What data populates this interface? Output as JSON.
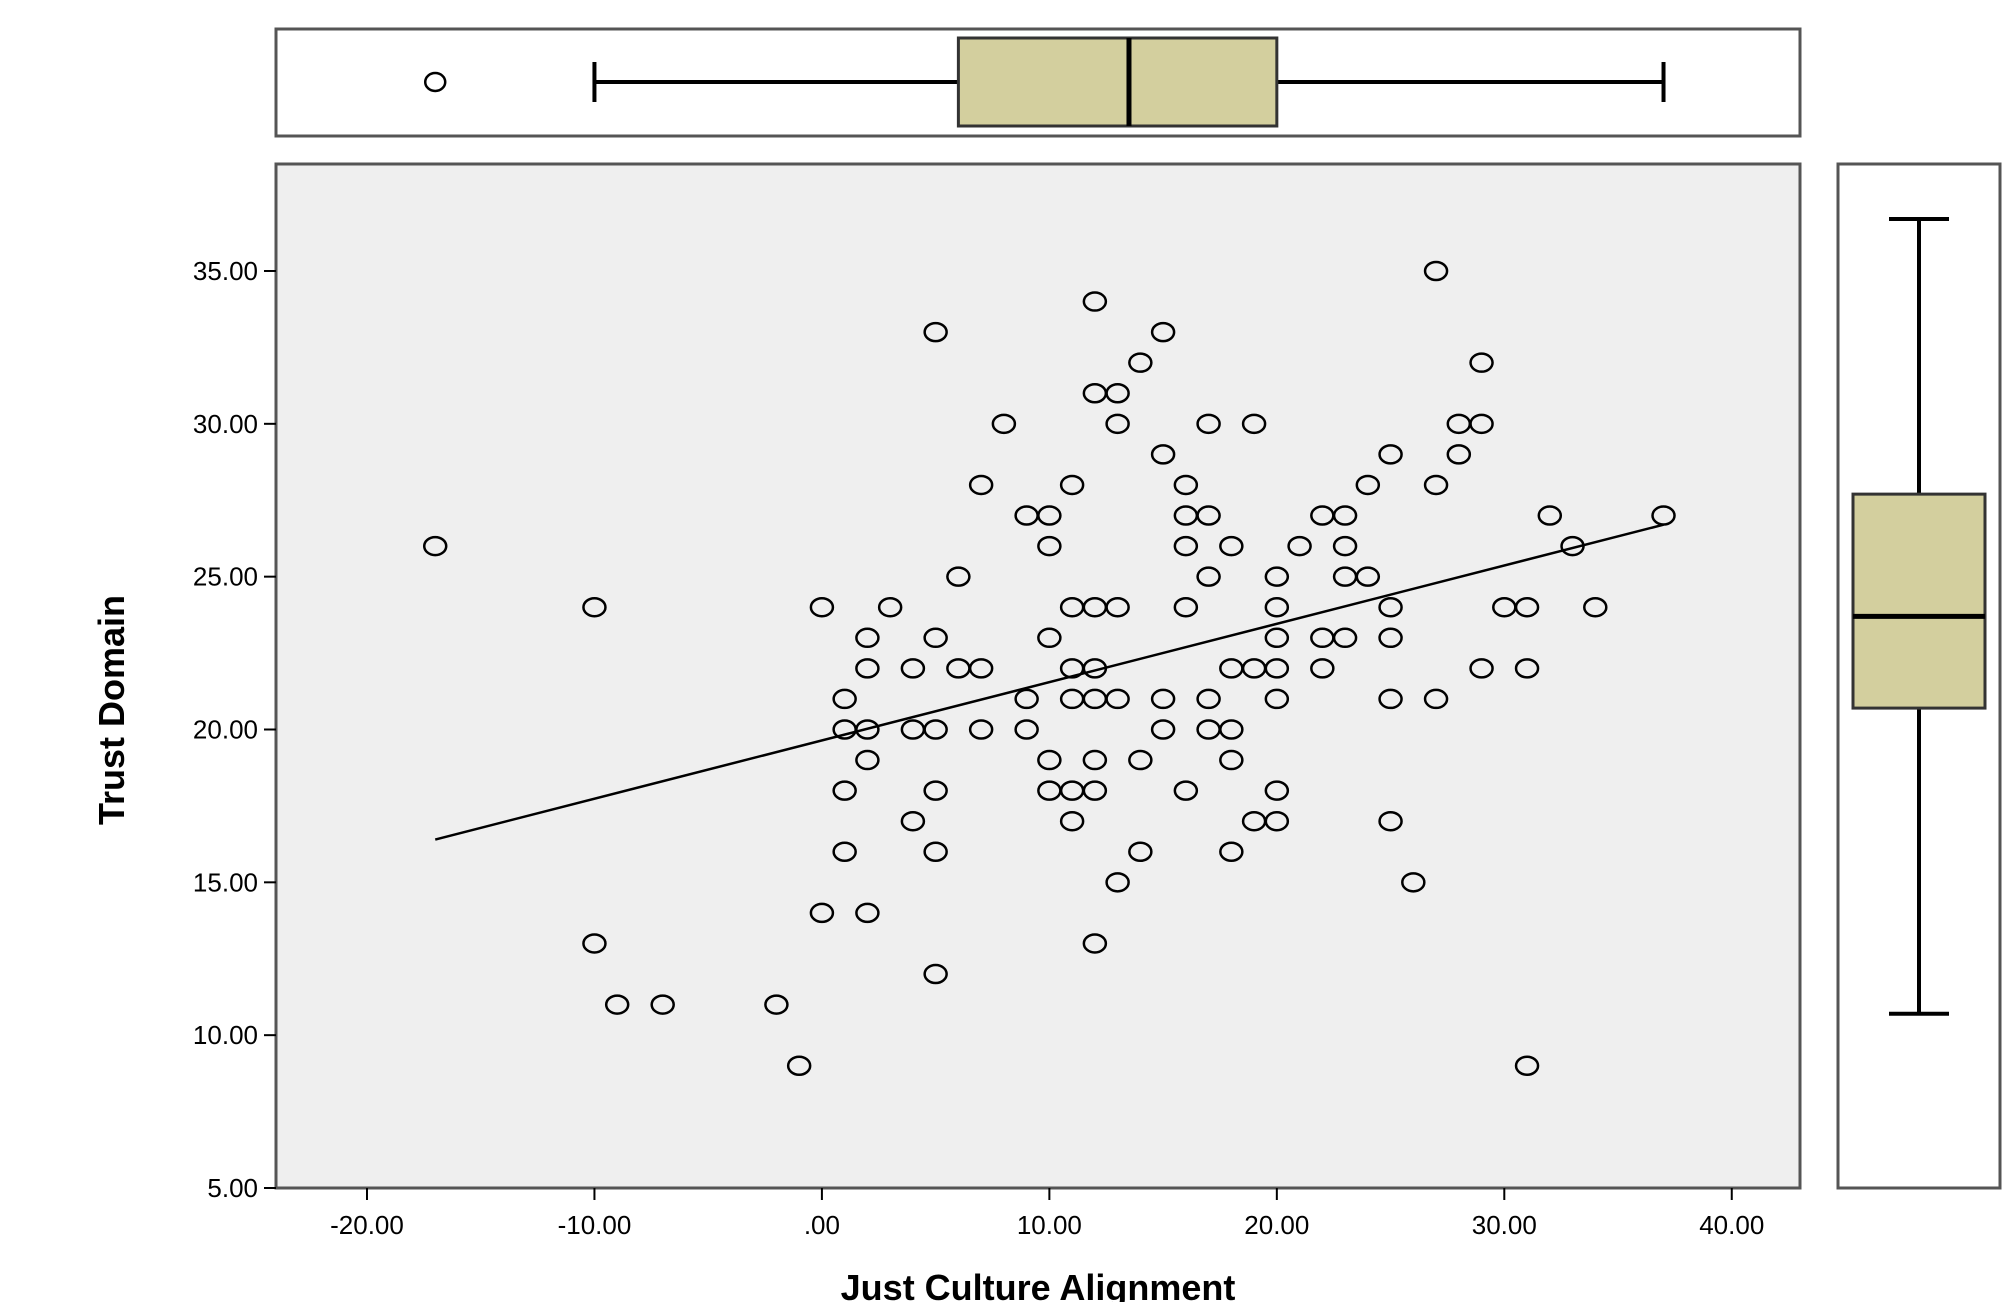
{
  "colors": {
    "plot_background": "#efefef",
    "box_fill": "#d3cf9e",
    "frame": "#555555",
    "marks": "#000000"
  },
  "chart_data": {
    "type": "scatter",
    "xlabel": "Just Culture Alignment",
    "ylabel": "Trust Domain",
    "xlim": [
      -24,
      43
    ],
    "ylim": [
      5,
      38.5
    ],
    "x_ticks": [
      -20,
      -10,
      0,
      10,
      20,
      30,
      40
    ],
    "x_tick_labels": [
      "-20.00",
      "-10.00",
      ".00",
      "10.00",
      "20.00",
      "30.00",
      "40.00"
    ],
    "y_ticks": [
      5,
      10,
      15,
      20,
      25,
      30,
      35
    ],
    "y_tick_labels": [
      "5.00",
      "10.00",
      "15.00",
      "20.00",
      "25.00",
      "30.00",
      "35.00"
    ],
    "grid": false,
    "marker": "open-circle",
    "points": [
      [
        -17,
        26
      ],
      [
        -10,
        24
      ],
      [
        -10,
        13
      ],
      [
        -9,
        11
      ],
      [
        -7,
        11
      ],
      [
        -2,
        11
      ],
      [
        -1,
        9
      ],
      [
        0,
        24
      ],
      [
        0,
        14
      ],
      [
        1,
        21
      ],
      [
        1,
        20
      ],
      [
        1,
        18
      ],
      [
        1,
        16
      ],
      [
        2,
        23
      ],
      [
        2,
        22
      ],
      [
        2,
        20
      ],
      [
        2,
        19
      ],
      [
        2,
        14
      ],
      [
        3,
        24
      ],
      [
        4,
        22
      ],
      [
        4,
        20
      ],
      [
        4,
        17
      ],
      [
        5,
        33
      ],
      [
        5,
        23
      ],
      [
        5,
        20
      ],
      [
        5,
        18
      ],
      [
        5,
        16
      ],
      [
        5,
        12
      ],
      [
        6,
        25
      ],
      [
        6,
        22
      ],
      [
        7,
        28
      ],
      [
        7,
        22
      ],
      [
        7,
        20
      ],
      [
        8,
        30
      ],
      [
        9,
        27
      ],
      [
        9,
        21
      ],
      [
        9,
        20
      ],
      [
        10,
        27
      ],
      [
        10,
        26
      ],
      [
        10,
        23
      ],
      [
        10,
        19
      ],
      [
        10,
        18
      ],
      [
        11,
        28
      ],
      [
        11,
        24
      ],
      [
        11,
        22
      ],
      [
        11,
        21
      ],
      [
        11,
        18
      ],
      [
        11,
        17
      ],
      [
        12,
        34
      ],
      [
        12,
        31
      ],
      [
        12,
        24
      ],
      [
        12,
        22
      ],
      [
        12,
        21
      ],
      [
        12,
        19
      ],
      [
        12,
        18
      ],
      [
        12,
        13
      ],
      [
        13,
        31
      ],
      [
        13,
        30
      ],
      [
        13,
        24
      ],
      [
        13,
        21
      ],
      [
        13,
        15
      ],
      [
        14,
        32
      ],
      [
        14,
        19
      ],
      [
        14,
        16
      ],
      [
        15,
        33
      ],
      [
        15,
        29
      ],
      [
        15,
        21
      ],
      [
        15,
        20
      ],
      [
        16,
        28
      ],
      [
        16,
        27
      ],
      [
        16,
        26
      ],
      [
        16,
        24
      ],
      [
        16,
        18
      ],
      [
        17,
        30
      ],
      [
        17,
        27
      ],
      [
        17,
        25
      ],
      [
        17,
        21
      ],
      [
        17,
        20
      ],
      [
        18,
        26
      ],
      [
        18,
        22
      ],
      [
        18,
        20
      ],
      [
        18,
        19
      ],
      [
        18,
        16
      ],
      [
        19,
        30
      ],
      [
        19,
        22
      ],
      [
        19,
        17
      ],
      [
        20,
        25
      ],
      [
        20,
        24
      ],
      [
        20,
        23
      ],
      [
        20,
        22
      ],
      [
        20,
        21
      ],
      [
        20,
        18
      ],
      [
        20,
        17
      ],
      [
        21,
        26
      ],
      [
        22,
        27
      ],
      [
        22,
        23
      ],
      [
        22,
        22
      ],
      [
        23,
        27
      ],
      [
        23,
        26
      ],
      [
        23,
        25
      ],
      [
        23,
        23
      ],
      [
        24,
        28
      ],
      [
        24,
        25
      ],
      [
        25,
        29
      ],
      [
        25,
        24
      ],
      [
        25,
        23
      ],
      [
        25,
        21
      ],
      [
        25,
        17
      ],
      [
        26,
        15
      ],
      [
        27,
        35
      ],
      [
        27,
        28
      ],
      [
        27,
        21
      ],
      [
        28,
        30
      ],
      [
        28,
        29
      ],
      [
        29,
        32
      ],
      [
        29,
        30
      ],
      [
        29,
        22
      ],
      [
        30,
        24
      ],
      [
        31,
        24
      ],
      [
        31,
        22
      ],
      [
        31,
        9
      ],
      [
        32,
        27
      ],
      [
        33,
        26
      ],
      [
        34,
        24
      ],
      [
        37,
        27
      ]
    ],
    "fit_line": {
      "x": [
        -17,
        37
      ],
      "y": [
        16.4,
        26.7
      ]
    },
    "x_boxplot": {
      "outliers": [
        -17
      ],
      "whisker_low": -10,
      "q1": 6,
      "median": 13.5,
      "q3": 20,
      "whisker_high": 37
    },
    "y_boxplot": {
      "outliers": [],
      "whisker_low": 10.7,
      "q1": 20.7,
      "median": 23.7,
      "q3": 27.7,
      "whisker_high": 36.7
    }
  }
}
